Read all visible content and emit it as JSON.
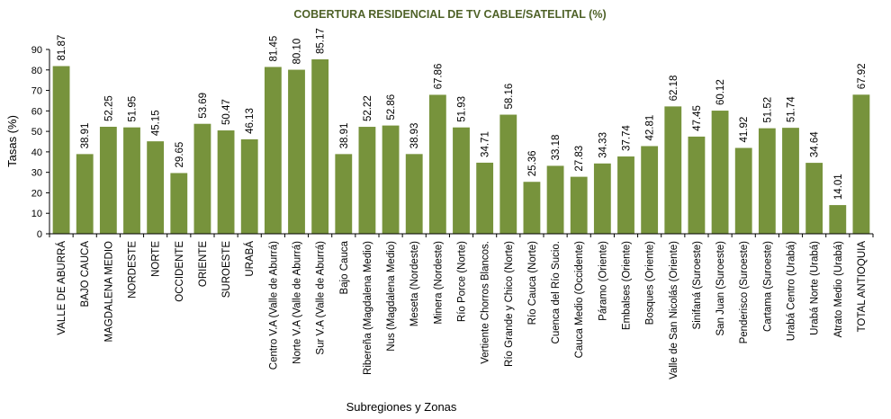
{
  "chart_data": {
    "type": "bar",
    "title": "COBERTURA RESIDENCIAL DE TV CABLE/SATELITAL (%)",
    "xlabel": "Subregiones y Zonas",
    "ylabel": "Tasas (%)",
    "ylim": [
      0,
      90
    ],
    "yticks": [
      "0",
      "10",
      "20",
      "30",
      "40",
      "50",
      "60",
      "70",
      "80",
      "90"
    ],
    "grid": false,
    "legend": "none",
    "colors": {
      "bar": "#77933C",
      "title": "#4F6228",
      "axis": "#000000"
    },
    "categories": [
      "VALLE DE ABURRÁ",
      "BAJO CAUCA",
      "MAGDALENA MEDIO",
      "NORDESTE",
      "NORTE",
      "OCCIDENTE",
      "ORIENTE",
      "SUROESTE",
      "URABÁ",
      "Centro V.A (Valle de Aburrá)",
      "Norte V.A (Valle de Aburrá)",
      "Sur V.A (Valle de Aburrá)",
      "Bajo Cauca",
      "Ribereña (Magdalena Medio)",
      "Nus (Magdalena Medio)",
      "Meseta (Nordeste)",
      "Minera (Nordeste)",
      "Río Porce (Norte)",
      "Vertiente Chorros Blancos.",
      "Río Grande y Chico (Norte)",
      "Río Cauca (Norte)",
      "Cuenca del Río Sucio.",
      "Cauca Medio (Occidente)",
      "Páramo (Oriente)",
      "Embalses (Oriente)",
      "Bosques (Oriente)",
      "Valle de San Nicolás (Oriente)",
      "Sinifaná (Suroeste)",
      "San Juan (Suroeste)",
      "Penderisco (Suroeste)",
      "Cartama (Suroeste)",
      "Urabá Centro (Urabá)",
      "Urabá Norte (Urabá)",
      "Atrato Medio (Urabá)",
      "TOTAL ANTIOQUIA"
    ],
    "values": [
      81.87,
      38.91,
      52.25,
      51.95,
      45.15,
      29.65,
      53.69,
      50.47,
      46.13,
      81.45,
      80.1,
      85.17,
      38.91,
      52.22,
      52.86,
      38.93,
      67.86,
      51.93,
      34.71,
      58.16,
      25.36,
      33.18,
      27.83,
      34.33,
      37.74,
      42.81,
      62.18,
      47.45,
      60.12,
      41.92,
      51.52,
      51.74,
      34.64,
      14.01,
      67.92
    ],
    "value_labels": [
      "81.87",
      "38.91",
      "52.25",
      "51.95",
      "45.15",
      "29.65",
      "53.69",
      "50.47",
      "46.13",
      "81.45",
      "80.10",
      "85.17",
      "38.91",
      "52.22",
      "52.86",
      "38.93",
      "67.86",
      "51.93",
      "34.71",
      "58.16",
      "25.36",
      "33.18",
      "27.83",
      "34.33",
      "37.74",
      "42.81",
      "62.18",
      "47.45",
      "60.12",
      "41.92",
      "51.52",
      "51.74",
      "34.64",
      "14.01",
      "67.92"
    ]
  }
}
